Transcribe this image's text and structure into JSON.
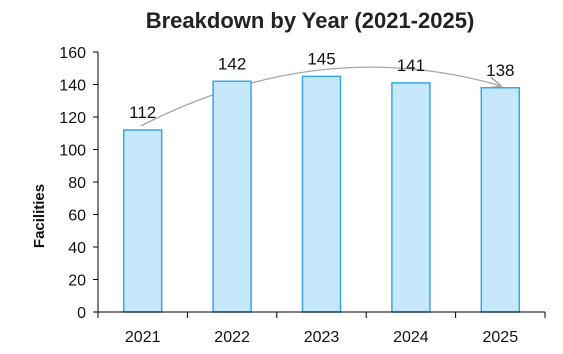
{
  "chart_data": {
    "type": "bar",
    "title": "Breakdown by Year (2021-2025)",
    "xlabel": "",
    "ylabel": "Facilities",
    "categories": [
      "2021",
      "2022",
      "2023",
      "2024",
      "2025"
    ],
    "values": [
      112,
      142,
      145,
      141,
      138
    ],
    "data_labels": [
      "112",
      "142",
      "145",
      "141",
      "138"
    ],
    "ylim": [
      0,
      160
    ],
    "yticks": [
      0,
      20,
      40,
      60,
      80,
      100,
      120,
      140,
      160
    ],
    "ytick_labels": [
      "0",
      "20",
      "40",
      "60",
      "80",
      "100",
      "120",
      "140",
      "160"
    ],
    "grid": false,
    "legend": "none",
    "bar_fill": "#c5e9fb",
    "bar_stroke": "#3aa6e8",
    "annotations": [
      {
        "type": "curved-arrow",
        "from": "2021",
        "to": "2025",
        "color": "#a6a6a6"
      }
    ]
  }
}
